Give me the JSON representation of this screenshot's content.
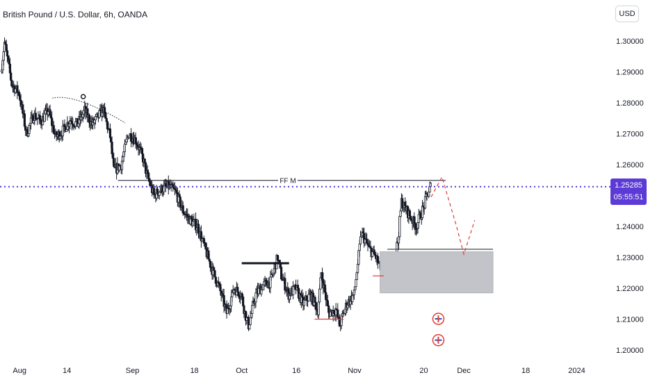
{
  "header": {
    "symbol_title": "British Pound / U.S. Dollar, 6h, OANDA",
    "currency_button": "USD"
  },
  "price_badge": {
    "price": "1.25285",
    "countdown": "05:55:51"
  },
  "colors": {
    "candle": "#131722",
    "current_price_line": "#5b3ad6",
    "zone_fill": "#c2c4c9",
    "red_line": "#e03a3a",
    "grid": "#ffffff"
  },
  "chart_data": {
    "type": "candlestick",
    "y_axis": {
      "ticks": [
        1.3,
        1.29,
        1.28,
        1.27,
        1.26,
        1.24,
        1.23,
        1.22,
        1.21,
        1.2
      ],
      "tick_labels": [
        "1.30000",
        "1.29000",
        "1.28000",
        "1.27000",
        "1.26000",
        "1.24000",
        "1.23000",
        "1.22000",
        "1.21000",
        "1.20000"
      ],
      "ylim": [
        1.1983,
        1.3073
      ]
    },
    "x_axis": {
      "tick_labels": [
        "Aug",
        "14",
        "Sep",
        "18",
        "Oct",
        "16",
        "Nov",
        "20",
        "Dec",
        "18",
        "2024"
      ],
      "tick_dates": [
        "2023-08-01",
        "2023-08-14",
        "2023-09-01",
        "2023-09-18",
        "2023-10-01",
        "2023-10-16",
        "2023-11-01",
        "2023-11-20",
        "2023-12-01",
        "2023-12-18",
        "2024-01-01"
      ],
      "xlim": [
        "2023-07-27",
        "2024-01-09"
      ]
    },
    "price_path": [
      [
        "2023-07-27",
        1.29
      ],
      [
        "2023-07-28",
        1.2995
      ],
      [
        "2023-07-30",
        1.286
      ],
      [
        "2023-08-01",
        1.283
      ],
      [
        "2023-08-03",
        1.27
      ],
      [
        "2023-08-05",
        1.276
      ],
      [
        "2023-08-07",
        1.274
      ],
      [
        "2023-08-09",
        1.2775
      ],
      [
        "2023-08-11",
        1.269
      ],
      [
        "2023-08-13",
        1.271
      ],
      [
        "2023-08-15",
        1.2745
      ],
      [
        "2023-08-17",
        1.273
      ],
      [
        "2023-08-19",
        1.2775
      ],
      [
        "2023-08-21",
        1.273
      ],
      [
        "2023-08-23",
        1.276
      ],
      [
        "2023-08-24",
        1.278
      ],
      [
        "2023-08-26",
        1.269
      ],
      [
        "2023-08-27",
        1.258
      ],
      [
        "2023-08-29",
        1.26
      ],
      [
        "2023-08-31",
        1.27
      ],
      [
        "2023-09-02",
        1.268
      ],
      [
        "2023-09-04",
        1.262
      ],
      [
        "2023-09-05",
        1.257
      ],
      [
        "2023-09-07",
        1.25
      ],
      [
        "2023-09-09",
        1.252
      ],
      [
        "2023-09-11",
        1.253
      ],
      [
        "2023-09-13",
        1.251
      ],
      [
        "2023-09-15",
        1.245
      ],
      [
        "2023-09-17",
        1.242
      ],
      [
        "2023-09-19",
        1.24
      ],
      [
        "2023-09-21",
        1.233
      ],
      [
        "2023-09-23",
        1.226
      ],
      [
        "2023-09-25",
        1.22
      ],
      [
        "2023-09-27",
        1.212
      ],
      [
        "2023-09-29",
        1.22
      ],
      [
        "2023-10-01",
        1.218
      ],
      [
        "2023-10-02",
        1.212
      ],
      [
        "2023-10-03",
        1.208
      ],
      [
        "2023-10-05",
        1.218
      ],
      [
        "2023-10-07",
        1.221
      ],
      [
        "2023-10-09",
        1.222
      ],
      [
        "2023-10-11",
        1.23
      ],
      [
        "2023-10-12",
        1.224
      ],
      [
        "2023-10-14",
        1.218
      ],
      [
        "2023-10-16",
        1.22
      ],
      [
        "2023-10-18",
        1.215
      ],
      [
        "2023-10-20",
        1.218
      ],
      [
        "2023-10-22",
        1.213
      ],
      [
        "2023-10-23",
        1.225
      ],
      [
        "2023-10-25",
        1.212
      ],
      [
        "2023-10-27",
        1.213
      ],
      [
        "2023-10-28",
        1.208
      ],
      [
        "2023-10-30",
        1.215
      ],
      [
        "2023-11-01",
        1.218
      ],
      [
        "2023-11-03",
        1.238
      ],
      [
        "2023-11-05",
        1.233
      ],
      [
        "2023-11-07",
        1.23
      ],
      [
        "2023-11-09",
        1.224
      ],
      [
        "2023-11-10",
        1.222
      ],
      [
        "2023-11-11",
        1.226
      ],
      [
        "2023-11-13",
        1.235
      ],
      [
        "2023-11-14",
        1.248
      ],
      [
        "2023-11-16",
        1.244
      ],
      [
        "2023-11-18",
        1.24
      ],
      [
        "2023-11-20",
        1.246
      ],
      [
        "2023-11-21",
        1.25
      ],
      [
        "2023-11-22",
        1.253
      ]
    ],
    "current_price": 1.25285,
    "annotations": {
      "ffm_label": "FF M",
      "ffm_level": 1.2549,
      "arc_start": "2023-08-10",
      "arc_end": "2023-08-30",
      "black_level": 1.2281,
      "zone_top": 1.2318,
      "zone_bottom": 1.2185,
      "zone_line_level": 1.2326,
      "red_level_low": 1.21,
      "red_level_mid": 1.224,
      "projection": [
        [
          "2023-11-22",
          1.2495
        ],
        [
          "2023-11-25",
          1.256
        ],
        [
          "2023-11-29",
          1.24
        ],
        [
          "2023-12-01",
          1.231
        ],
        [
          "2023-12-04",
          1.242
        ]
      ]
    }
  }
}
